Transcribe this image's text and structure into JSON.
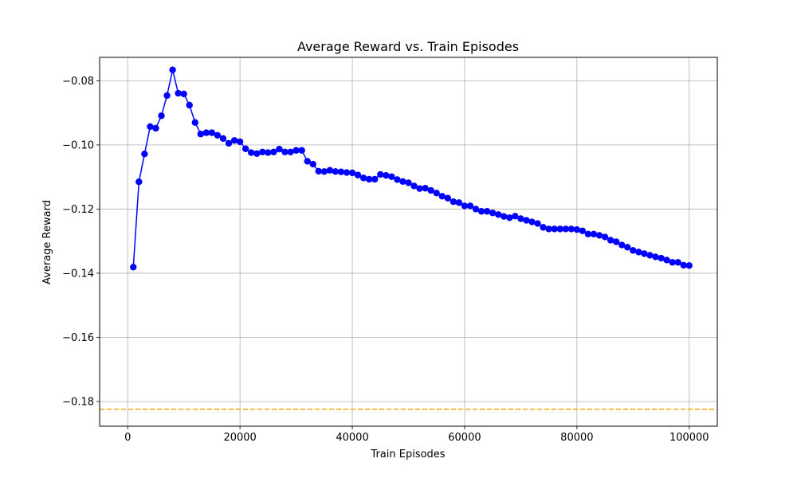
{
  "chart_data": {
    "type": "line",
    "title": "Average Reward vs. Train Episodes",
    "xlabel": "Train Episodes",
    "ylabel": "Average Reward",
    "xlim": [
      -5000,
      105000
    ],
    "ylim": [
      -0.1877,
      -0.0727
    ],
    "grid": true,
    "xticks": [
      0,
      20000,
      40000,
      60000,
      80000,
      100000
    ],
    "xtick_labels": [
      "0",
      "20000",
      "40000",
      "60000",
      "80000",
      "100000"
    ],
    "yticks": [
      -0.08,
      -0.1,
      -0.12,
      -0.14,
      -0.16,
      -0.18
    ],
    "ytick_labels": [
      "−0.08",
      "−0.10",
      "−0.12",
      "−0.14",
      "−0.16",
      "−0.18"
    ],
    "series": [
      {
        "color": "#0000ff",
        "style": "solid",
        "marker": "circle",
        "x": [
          1000,
          2000,
          3000,
          4000,
          5000,
          6000,
          7000,
          8000,
          9000,
          10000,
          11000,
          12000,
          13000,
          14000,
          15000,
          16000,
          17000,
          18000,
          19000,
          20000,
          21000,
          22000,
          23000,
          24000,
          25000,
          26000,
          27000,
          28000,
          29000,
          30000,
          31000,
          32000,
          33000,
          34000,
          35000,
          36000,
          37000,
          38000,
          39000,
          40000,
          41000,
          42000,
          43000,
          44000,
          45000,
          46000,
          47000,
          48000,
          49000,
          50000,
          51000,
          52000,
          53000,
          54000,
          55000,
          56000,
          57000,
          58000,
          59000,
          60000,
          61000,
          62000,
          63000,
          64000,
          65000,
          66000,
          67000,
          68000,
          69000,
          70000,
          71000,
          72000,
          73000,
          74000,
          75000,
          76000,
          77000,
          78000,
          79000,
          80000,
          81000,
          82000,
          83000,
          84000,
          85000,
          86000,
          87000,
          88000,
          89000,
          90000,
          91000,
          92000,
          93000,
          94000,
          95000,
          96000,
          97000,
          98000,
          99000,
          100000
        ],
        "y": [
          -0.1381,
          -0.1115,
          -0.1028,
          -0.0943,
          -0.0948,
          -0.0909,
          -0.0846,
          -0.0766,
          -0.0839,
          -0.0841,
          -0.0876,
          -0.093,
          -0.0966,
          -0.0962,
          -0.0962,
          -0.097,
          -0.098,
          -0.0995,
          -0.0986,
          -0.099,
          -0.1012,
          -0.1024,
          -0.1027,
          -0.1022,
          -0.1024,
          -0.1022,
          -0.1013,
          -0.1022,
          -0.1022,
          -0.1017,
          -0.1017,
          -0.1051,
          -0.106,
          -0.1082,
          -0.1083,
          -0.1079,
          -0.1083,
          -0.1084,
          -0.1086,
          -0.1087,
          -0.1094,
          -0.1103,
          -0.1107,
          -0.1107,
          -0.1092,
          -0.1095,
          -0.1099,
          -0.1108,
          -0.1114,
          -0.1118,
          -0.1128,
          -0.1136,
          -0.1135,
          -0.1142,
          -0.115,
          -0.116,
          -0.1166,
          -0.1177,
          -0.118,
          -0.119,
          -0.119,
          -0.12,
          -0.1207,
          -0.1207,
          -0.1212,
          -0.1217,
          -0.1223,
          -0.1227,
          -0.1222,
          -0.123,
          -0.1235,
          -0.124,
          -0.1245,
          -0.1257,
          -0.1262,
          -0.1262,
          -0.1262,
          -0.1262,
          -0.1262,
          -0.1264,
          -0.1268,
          -0.1278,
          -0.1278,
          -0.1282,
          -0.1287,
          -0.1297,
          -0.1302,
          -0.1312,
          -0.1319,
          -0.1329,
          -0.1334,
          -0.1339,
          -0.1344,
          -0.1349,
          -0.1353,
          -0.1359,
          -0.1366,
          -0.1366,
          -0.1375,
          -0.1376
        ]
      }
    ],
    "hlines": [
      {
        "y": -0.1824,
        "color": "#ffa500",
        "style": "dashed"
      }
    ]
  }
}
